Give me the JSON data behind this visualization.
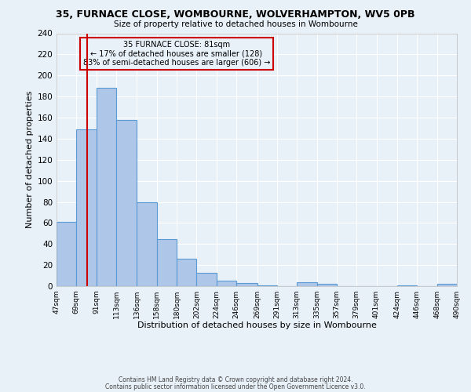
{
  "title1": "35, FURNACE CLOSE, WOMBOURNE, WOLVERHAMPTON, WV5 0PB",
  "title2": "Size of property relative to detached houses in Wombourne",
  "xlabel": "Distribution of detached houses by size in Wombourne",
  "ylabel": "Number of detached properties",
  "bin_edges": [
    47,
    69,
    91,
    113,
    136,
    158,
    180,
    202,
    224,
    246,
    269,
    291,
    313,
    335,
    357,
    379,
    401,
    424,
    446,
    468,
    490
  ],
  "bar_heights": [
    61,
    149,
    188,
    158,
    80,
    45,
    26,
    13,
    5,
    3,
    1,
    0,
    4,
    2,
    0,
    0,
    0,
    1,
    0,
    2
  ],
  "bar_color": "#aec6e8",
  "bar_edgecolor": "#5b9bd5",
  "vline_x": 81,
  "vline_color": "#cc0000",
  "ylim": [
    0,
    240
  ],
  "yticks": [
    0,
    20,
    40,
    60,
    80,
    100,
    120,
    140,
    160,
    180,
    200,
    220,
    240
  ],
  "xtick_labels": [
    "47sqm",
    "69sqm",
    "91sqm",
    "113sqm",
    "136sqm",
    "158sqm",
    "180sqm",
    "202sqm",
    "224sqm",
    "246sqm",
    "269sqm",
    "291sqm",
    "313sqm",
    "335sqm",
    "357sqm",
    "379sqm",
    "401sqm",
    "424sqm",
    "446sqm",
    "468sqm",
    "490sqm"
  ],
  "annotation_title": "35 FURNACE CLOSE: 81sqm",
  "annotation_line1": "← 17% of detached houses are smaller (128)",
  "annotation_line2": "83% of semi-detached houses are larger (606) →",
  "bg_color": "#e8f0f8",
  "grid_color": "#ffffff",
  "footer1": "Contains HM Land Registry data © Crown copyright and database right 2024.",
  "footer2": "Contains public sector information licensed under the Open Government Licence v3.0."
}
